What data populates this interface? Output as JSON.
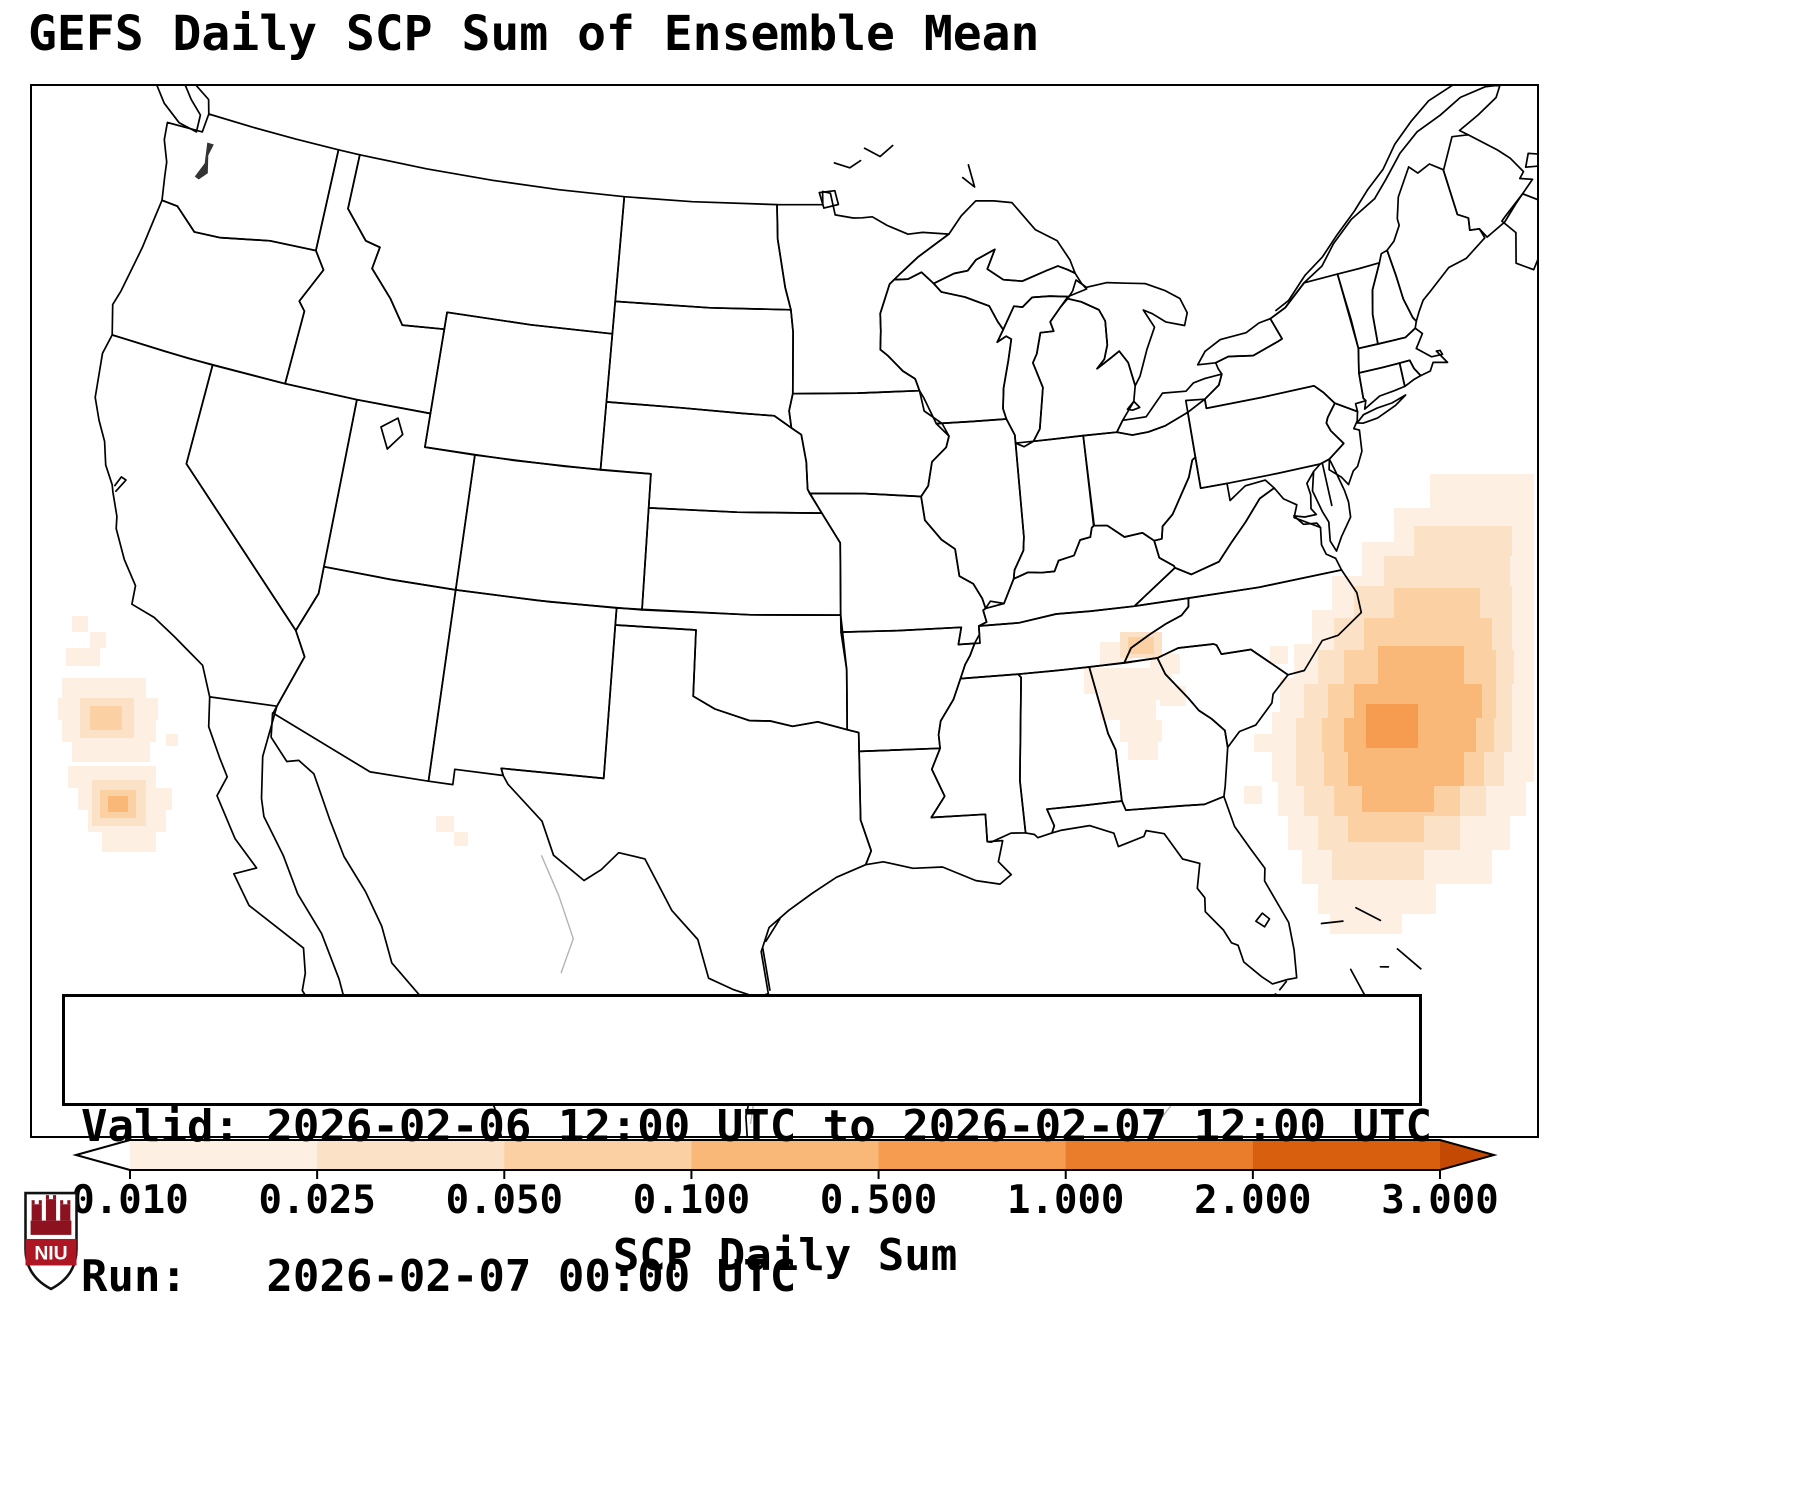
{
  "title": "GEFS Daily SCP Sum of Ensemble Mean",
  "info_box": {
    "valid_line": "Valid: 2026-02-06 12:00 UTC to 2026-02-07 12:00 UTC",
    "run_line": "Run:   2026-02-07 00:00 UTC"
  },
  "colorbar": {
    "label": "SCP Daily Sum",
    "ticks": [
      "0.010",
      "0.025",
      "0.050",
      "0.100",
      "0.500",
      "1.000",
      "2.000",
      "3.000"
    ],
    "segment_colors": [
      "#fdf0e3",
      "#fbe2c6",
      "#fbd0a3",
      "#f9b877",
      "#f59c51",
      "#ea7d2c",
      "#d85f0e"
    ],
    "under_color": "#ffffff",
    "over_color": "#c44a03",
    "outline_color": "#000000"
  },
  "logo": {
    "text": "NIU",
    "band_color": "#ad1623"
  },
  "chart_data": {
    "type": "filled_contour_map",
    "title": "GEFS Daily SCP Sum of Ensemble Mean",
    "colorbar_label": "SCP Daily Sum",
    "levels": [
      0.01,
      0.025,
      0.05,
      0.1,
      0.5,
      1.0,
      2.0,
      3.0
    ],
    "valid": "2026-02-06 12:00 UTC to 2026-02-07 12:00 UTC",
    "run": "2026-02-07 00:00 UTC",
    "regions": [
      {
        "name": "western-atlantic-off-southeast-us-coast",
        "approx_max_scp": "0.5-1.0"
      },
      {
        "name": "eastern-pacific-off-baja-california",
        "approx_max_scp": "0.1-0.5"
      },
      {
        "name": "southern-appalachians-tn-nc-ga",
        "approx_max_scp": "0.05-0.1"
      },
      {
        "name": "nm-chihuahua-border-area",
        "approx_max_scp": "0.01-0.025"
      }
    ]
  }
}
